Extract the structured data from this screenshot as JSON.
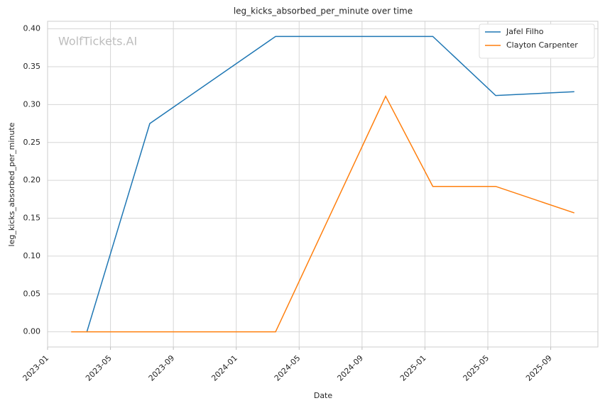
{
  "chart_data": {
    "type": "line",
    "title": "leg_kicks_absorbed_per_minute over time",
    "x_label": "Date",
    "y_label": "leg_kicks_absorbed_per_minute",
    "watermark": "WolfTickets.AI",
    "series": [
      {
        "name": "Jafel Filho",
        "color": "#1f77b4",
        "x": [
          "2023-03",
          "2023-07",
          "2024-03",
          "2025-01",
          "2025-05",
          "2025-10"
        ],
        "values": [
          0.0,
          0.275,
          0.39,
          0.39,
          0.312,
          0.317
        ]
      },
      {
        "name": "Clayton Carpenter",
        "color": "#ff7f0e",
        "x": [
          "2023-02",
          "2024-03",
          "2024-10",
          "2025-01",
          "2025-05",
          "2025-10"
        ],
        "values": [
          0.0,
          0.0,
          0.311,
          0.192,
          0.192,
          0.157
        ]
      }
    ],
    "xlim": [
      "2023-01",
      "2025-12"
    ],
    "xticks": [
      "2023-01",
      "2023-05",
      "2023-09",
      "2024-01",
      "2024-05",
      "2024-09",
      "2025-01",
      "2025-05",
      "2025-09"
    ],
    "ylim": [
      -0.02,
      0.41
    ],
    "yticks": [
      {
        "value": 0,
        "label": "0.00"
      },
      {
        "value": 0.05,
        "label": "0.05"
      },
      {
        "value": 0.1,
        "label": "0.10"
      },
      {
        "value": 0.15,
        "label": "0.15"
      },
      {
        "value": 0.2,
        "label": "0.20"
      },
      {
        "value": 0.25,
        "label": "0.25"
      },
      {
        "value": 0.3,
        "label": "0.30"
      },
      {
        "value": 0.35,
        "label": "0.35"
      },
      {
        "value": 0.4,
        "label": "0.40"
      }
    ],
    "grid": true,
    "legend": "upper-right"
  }
}
